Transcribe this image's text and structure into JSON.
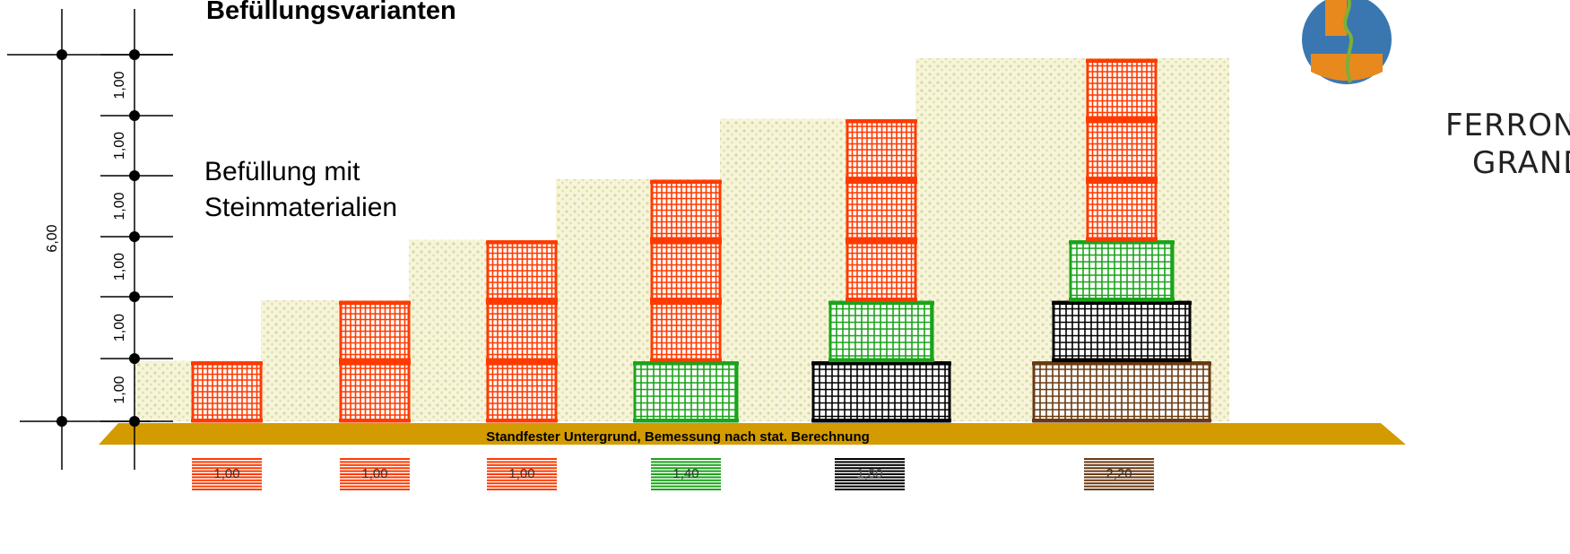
{
  "title": "Befüllungsvarianten",
  "fill_label": [
    "Befüllung mit",
    "Steinmaterialien"
  ],
  "ground_label": "Standfester Untergrund, Bemessung nach stat. Berechnung",
  "total_height_label": "6,00",
  "level_labels": [
    "1,00",
    "1,00",
    "1,00",
    "1,00",
    "1,00",
    "1,00"
  ],
  "logo": {
    "line1": "FERROND",
    "line2": "GRANDI",
    "circle_color": "#3a77b0",
    "accent_color": "#e8891e"
  },
  "colors": {
    "red": "#ff3a00",
    "green": "#1aa41a",
    "black": "#000000",
    "brown": "#6b3a12",
    "ground": "#d39b00",
    "fill_bg": "#f6f3d8",
    "fill_dots": "#d6dca2"
  },
  "columns": [
    {
      "name": "1,00",
      "swatch": "red",
      "stack": [
        "red"
      ]
    },
    {
      "name": "1,00",
      "swatch": "red",
      "stack": [
        "red",
        "red"
      ]
    },
    {
      "name": "1,00",
      "swatch": "red",
      "stack": [
        "red",
        "red",
        "red"
      ]
    },
    {
      "name": "1,40",
      "swatch": "green",
      "stack": [
        "green",
        "red",
        "red",
        "red"
      ]
    },
    {
      "name": "1,80",
      "swatch": "black",
      "stack": [
        "black",
        "green",
        "red",
        "red",
        "red"
      ]
    },
    {
      "name": "2,20",
      "swatch": "brown",
      "stack": [
        "brown",
        "black",
        "green",
        "red",
        "red",
        "red"
      ]
    }
  ]
}
